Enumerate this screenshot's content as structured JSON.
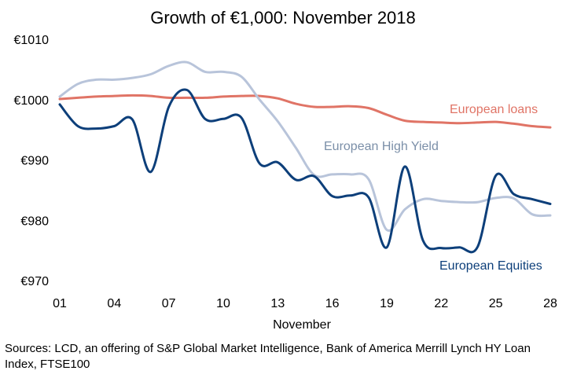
{
  "chart_data": {
    "type": "line",
    "title": "Growth of €1,000: November 2018",
    "xlabel": "November",
    "ylabel": "",
    "x_ticks": [
      "01",
      "04",
      "07",
      "10",
      "13",
      "16",
      "19",
      "22",
      "25",
      "28"
    ],
    "x": [
      1,
      2,
      3,
      4,
      5,
      6,
      7,
      8,
      9,
      10,
      11,
      12,
      13,
      14,
      15,
      16,
      17,
      18,
      19,
      20,
      21,
      22,
      23,
      24,
      25,
      26,
      27,
      28
    ],
    "xlim": [
      1,
      28
    ],
    "ylim": [
      970,
      1010
    ],
    "y_ticks": [
      "€970",
      "€980",
      "€990",
      "€1000",
      "€1010"
    ],
    "y_tick_values": [
      970,
      980,
      990,
      1000,
      1010
    ],
    "grid": false,
    "series": [
      {
        "name": "European loans",
        "color": "#e07466",
        "values": [
          1000.1,
          1000.3,
          1000.5,
          1000.6,
          1000.7,
          1000.6,
          1000.3,
          1000.3,
          1000.3,
          1000.5,
          1000.6,
          1000.6,
          1000.2,
          999.3,
          998.8,
          998.8,
          998.9,
          998.6,
          997.5,
          996.5,
          996.3,
          996.2,
          996.1,
          996.2,
          996.3,
          996.0,
          995.6,
          995.4
        ]
      },
      {
        "name": "European High Yield",
        "color": "#b8c4da",
        "values": [
          1000.5,
          1002.6,
          1003.3,
          1003.3,
          1003.6,
          1004.2,
          1005.6,
          1006.2,
          1004.6,
          1004.6,
          1003.8,
          1000.0,
          996.4,
          992.0,
          987.5,
          987.6,
          987.6,
          986.8,
          978.4,
          981.8,
          983.5,
          983.2,
          983.0,
          983.0,
          983.7,
          983.6,
          981.0,
          980.8
        ]
      },
      {
        "name": "European Equities",
        "color": "#0d3f7a",
        "values": [
          999.2,
          995.6,
          995.2,
          995.6,
          996.7,
          988.0,
          998.8,
          1001.6,
          996.8,
          996.8,
          997.0,
          989.4,
          989.6,
          986.7,
          987.3,
          984.0,
          984.1,
          983.8,
          975.5,
          988.9,
          976.6,
          975.4,
          975.5,
          975.6,
          987.4,
          984.3,
          983.5,
          982.7
        ]
      }
    ]
  },
  "source": "Sources: LCD, an offering of S&P Global Market Intelligence, Bank of America Merrill Lynch HY Loan Index, FTSE100"
}
